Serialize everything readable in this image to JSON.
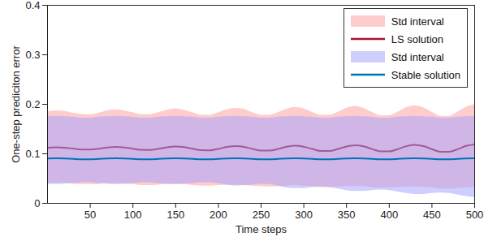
{
  "chart_data": {
    "type": "line",
    "x_label": "Time steps",
    "y_label": "One-step prediciton error",
    "xlim": [
      0,
      500
    ],
    "xticks": [
      50,
      100,
      150,
      200,
      250,
      300,
      350,
      400,
      450,
      500
    ],
    "ylim": [
      0,
      0.4
    ],
    "yticks": [
      0,
      0.1,
      0.2,
      0.3,
      0.4
    ],
    "legend": "top-right",
    "x": [
      0,
      10,
      20,
      30,
      40,
      50,
      60,
      70,
      80,
      90,
      100,
      110,
      120,
      130,
      140,
      150,
      160,
      170,
      180,
      190,
      200,
      210,
      220,
      230,
      240,
      250,
      260,
      270,
      280,
      290,
      300,
      310,
      320,
      330,
      340,
      350,
      360,
      370,
      380,
      390,
      400,
      410,
      420,
      430,
      440,
      450,
      460,
      470,
      480,
      490,
      500
    ],
    "series": [
      {
        "name": "Std interval",
        "type": "area",
        "color": "#ff9999",
        "lower": [
          0.041,
          0.041,
          0.041,
          0.039,
          0.038,
          0.038,
          0.038,
          0.04,
          0.04,
          0.039,
          0.038,
          0.036,
          0.036,
          0.037,
          0.038,
          0.039,
          0.038,
          0.036,
          0.035,
          0.035,
          0.036,
          0.037,
          0.037,
          0.036,
          0.035,
          0.034,
          0.033,
          0.034,
          0.035,
          0.036,
          0.035,
          0.034,
          0.032,
          0.032,
          0.033,
          0.034,
          0.034,
          0.034,
          0.032,
          0.031,
          0.031,
          0.032,
          0.033,
          0.033,
          0.032,
          0.031,
          0.029,
          0.029,
          0.03,
          0.031,
          0.032
        ],
        "upper": [
          0.185,
          0.187,
          0.186,
          0.182,
          0.18,
          0.179,
          0.182,
          0.187,
          0.189,
          0.187,
          0.183,
          0.179,
          0.179,
          0.183,
          0.188,
          0.191,
          0.188,
          0.183,
          0.178,
          0.178,
          0.183,
          0.189,
          0.192,
          0.19,
          0.183,
          0.178,
          0.178,
          0.183,
          0.19,
          0.194,
          0.191,
          0.184,
          0.178,
          0.178,
          0.184,
          0.192,
          0.196,
          0.192,
          0.184,
          0.177,
          0.177,
          0.184,
          0.193,
          0.197,
          0.193,
          0.184,
          0.176,
          0.176,
          0.184,
          0.194,
          0.199
        ]
      },
      {
        "name": "LS solution",
        "type": "line",
        "color": "#a2142f",
        "values": [
          0.1122,
          0.1131,
          0.1124,
          0.1105,
          0.1088,
          0.1087,
          0.1104,
          0.1128,
          0.114,
          0.1129,
          0.1103,
          0.108,
          0.1079,
          0.1102,
          0.1133,
          0.1148,
          0.1134,
          0.1101,
          0.1073,
          0.1071,
          0.11,
          0.1138,
          0.1156,
          0.114,
          0.1099,
          0.1065,
          0.1064,
          0.1098,
          0.1143,
          0.1165,
          0.1145,
          0.1097,
          0.1057,
          0.1056,
          0.1097,
          0.1148,
          0.1173,
          0.115,
          0.1096,
          0.105,
          0.1049,
          0.1095,
          0.1154,
          0.1182,
          0.1155,
          0.1094,
          0.1042,
          0.1041,
          0.1093,
          0.1159,
          0.119
        ]
      },
      {
        "name": "Std interval",
        "type": "area",
        "color": "#a0a0ff",
        "lower": [
          0.039,
          0.038,
          0.039,
          0.04,
          0.042,
          0.042,
          0.04,
          0.039,
          0.038,
          0.039,
          0.04,
          0.042,
          0.042,
          0.04,
          0.039,
          0.038,
          0.039,
          0.04,
          0.042,
          0.042,
          0.04,
          0.037,
          0.035,
          0.036,
          0.037,
          0.039,
          0.038,
          0.035,
          0.031,
          0.03,
          0.03,
          0.032,
          0.033,
          0.032,
          0.029,
          0.026,
          0.024,
          0.024,
          0.026,
          0.027,
          0.026,
          0.023,
          0.02,
          0.018,
          0.018,
          0.02,
          0.021,
          0.02,
          0.017,
          0.014,
          0.012
        ],
        "upper": [
          0.175,
          0.176,
          0.175,
          0.174,
          0.172,
          0.172,
          0.174,
          0.175,
          0.176,
          0.175,
          0.174,
          0.172,
          0.172,
          0.174,
          0.175,
          0.176,
          0.175,
          0.174,
          0.172,
          0.172,
          0.174,
          0.175,
          0.176,
          0.175,
          0.174,
          0.172,
          0.172,
          0.174,
          0.175,
          0.176,
          0.175,
          0.174,
          0.172,
          0.172,
          0.174,
          0.175,
          0.176,
          0.175,
          0.174,
          0.172,
          0.172,
          0.174,
          0.175,
          0.176,
          0.175,
          0.174,
          0.172,
          0.172,
          0.174,
          0.175,
          0.176
        ]
      },
      {
        "name": "Stable solution",
        "type": "line",
        "color": "#0072bd",
        "values": [
          0.0906,
          0.091,
          0.0906,
          0.0898,
          0.0891,
          0.0891,
          0.0898,
          0.0906,
          0.091,
          0.0906,
          0.0898,
          0.0891,
          0.0891,
          0.0898,
          0.0906,
          0.091,
          0.0906,
          0.0898,
          0.0891,
          0.0891,
          0.0898,
          0.0906,
          0.091,
          0.0906,
          0.0898,
          0.0891,
          0.0891,
          0.0898,
          0.0906,
          0.091,
          0.0906,
          0.0898,
          0.0891,
          0.0891,
          0.0898,
          0.0906,
          0.091,
          0.0906,
          0.0898,
          0.0891,
          0.0891,
          0.0898,
          0.0906,
          0.091,
          0.0906,
          0.0898,
          0.0891,
          0.0891,
          0.0898,
          0.0906,
          0.091
        ]
      }
    ]
  }
}
